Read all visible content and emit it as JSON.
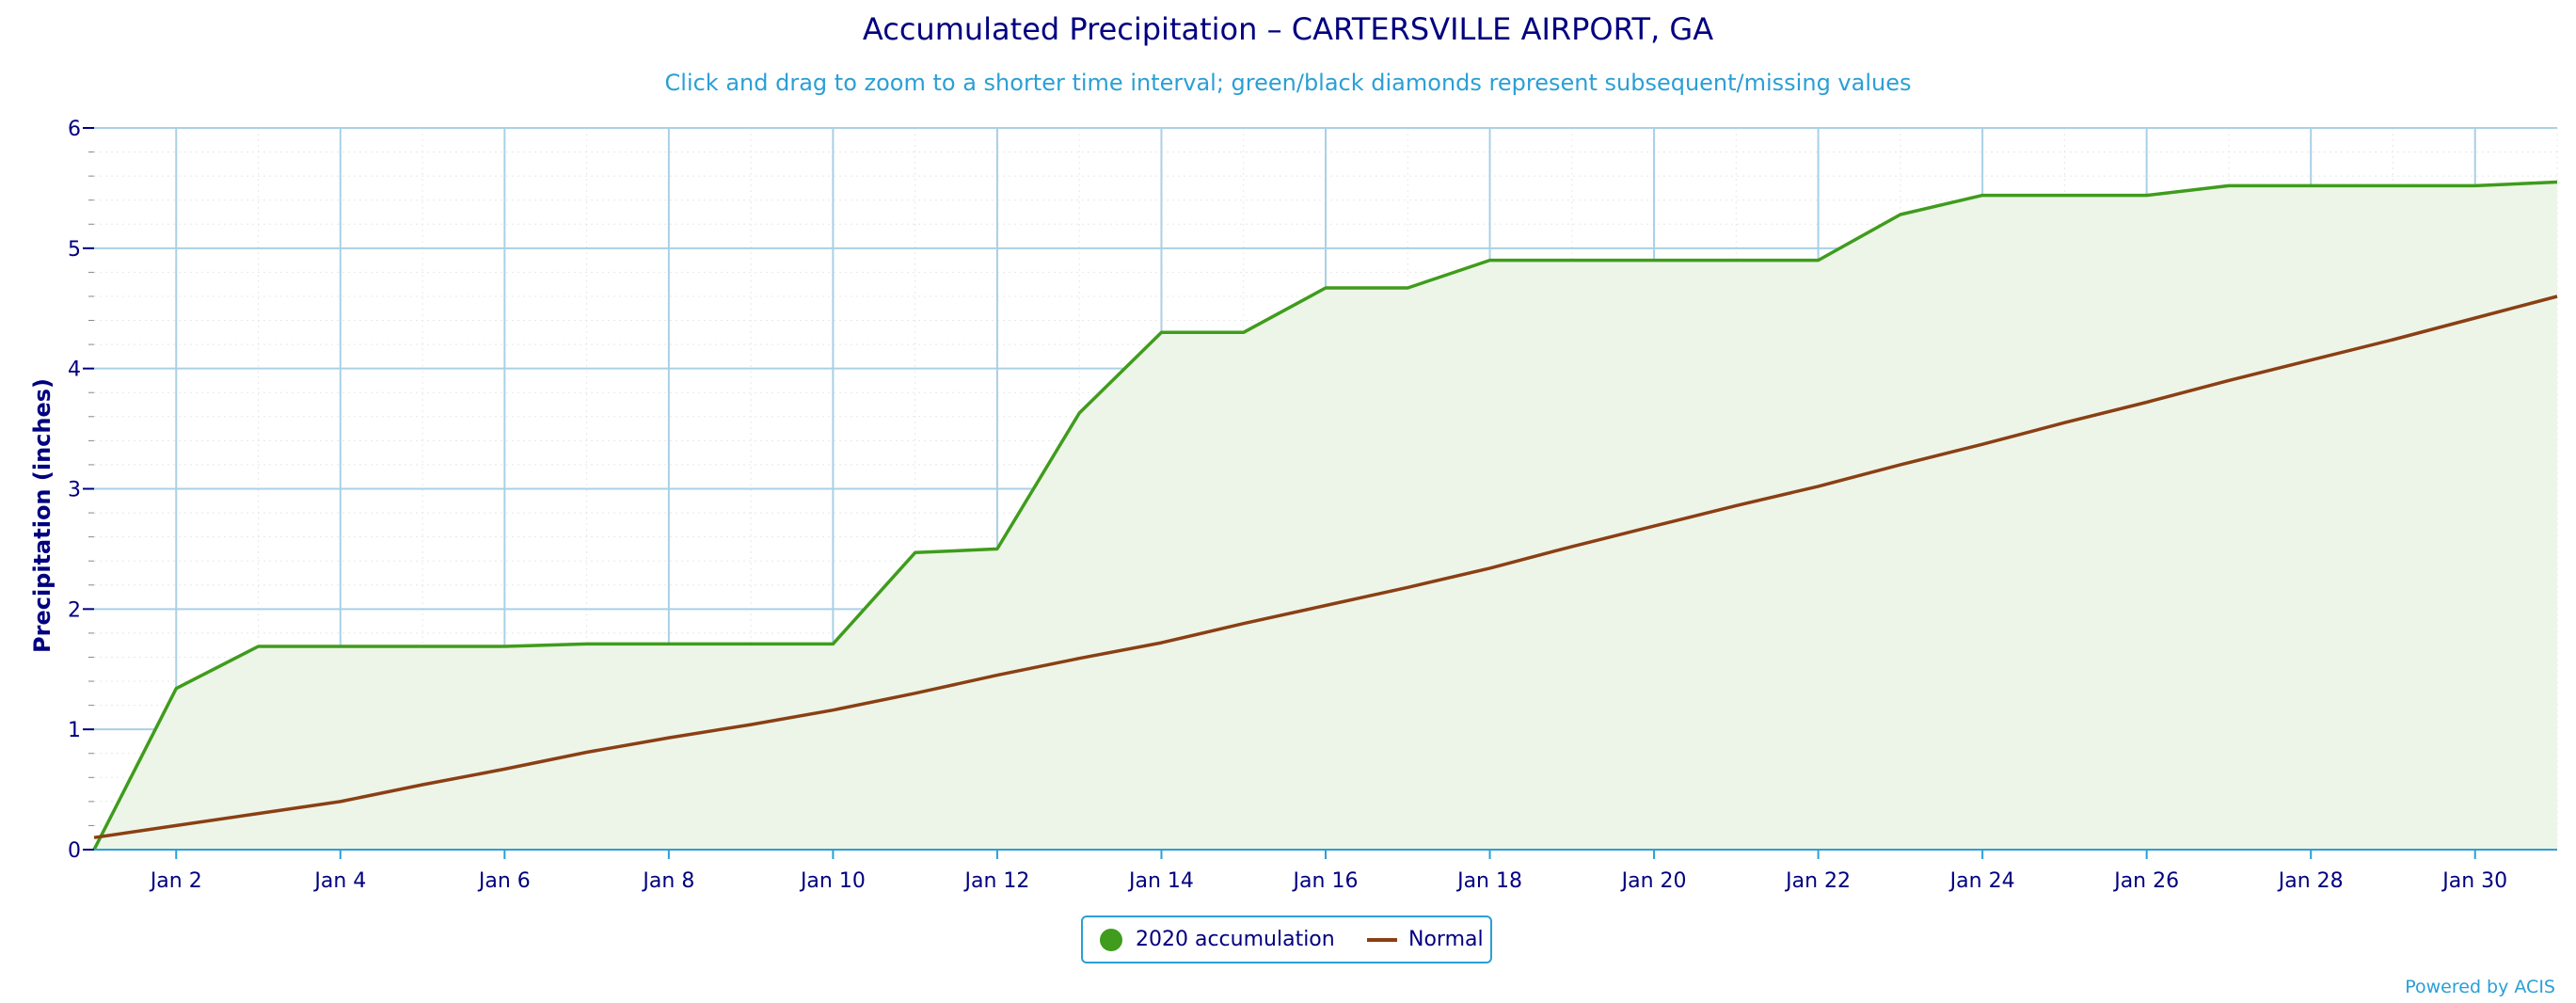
{
  "chart_data": {
    "type": "area",
    "title": "Accumulated Precipitation – CARTERSVILLE AIRPORT, GA",
    "subtitle": "Click and drag to zoom to a shorter time interval; green/black diamonds represent subsequent/missing values",
    "ylabel": "Precipitation (inches)",
    "xlabel": "",
    "xlim": [
      1,
      31
    ],
    "ylim": [
      0,
      6
    ],
    "yticks": [
      "0",
      "1",
      "2",
      "3",
      "4",
      "5",
      "6"
    ],
    "xticks": [
      "Jan 2",
      "Jan 4",
      "Jan 6",
      "Jan 8",
      "Jan 10",
      "Jan 12",
      "Jan 14",
      "Jan 16",
      "Jan 18",
      "Jan 20",
      "Jan 22",
      "Jan 24",
      "Jan 26",
      "Jan 28",
      "Jan 30"
    ],
    "grid": true,
    "legend_position": "bottom-center",
    "series": [
      {
        "name": "2020 accumulation",
        "color": "#3f9c1c",
        "fill": "#edf5e8",
        "x": [
          1,
          2,
          3,
          4,
          5,
          6,
          7,
          8,
          9,
          10,
          11,
          12,
          13,
          14,
          15,
          16,
          17,
          18,
          19,
          20,
          21,
          22,
          23,
          24,
          25,
          26,
          27,
          28,
          29,
          30,
          31
        ],
        "values": [
          0.0,
          1.34,
          1.69,
          1.69,
          1.69,
          1.69,
          1.71,
          1.71,
          1.71,
          1.71,
          2.47,
          2.5,
          3.63,
          4.3,
          4.3,
          4.67,
          4.67,
          4.9,
          4.9,
          4.9,
          4.9,
          4.9,
          5.28,
          5.44,
          5.44,
          5.44,
          5.52,
          5.52,
          5.52,
          5.52,
          5.55
        ]
      },
      {
        "name": "Normal",
        "color": "#8b3f14",
        "x": [
          1,
          2,
          3,
          4,
          5,
          6,
          7,
          8,
          9,
          10,
          11,
          12,
          13,
          14,
          15,
          16,
          17,
          18,
          19,
          20,
          21,
          22,
          23,
          24,
          25,
          26,
          27,
          28,
          29,
          30,
          31
        ],
        "values": [
          0.1,
          0.2,
          0.3,
          0.4,
          0.54,
          0.67,
          0.81,
          0.93,
          1.04,
          1.16,
          1.3,
          1.45,
          1.59,
          1.72,
          1.88,
          2.03,
          2.18,
          2.34,
          2.52,
          2.69,
          2.86,
          3.02,
          3.2,
          3.37,
          3.55,
          3.72,
          3.9,
          4.07,
          4.24,
          4.42,
          4.6
        ]
      }
    ]
  },
  "credit": "Powered by ACIS"
}
